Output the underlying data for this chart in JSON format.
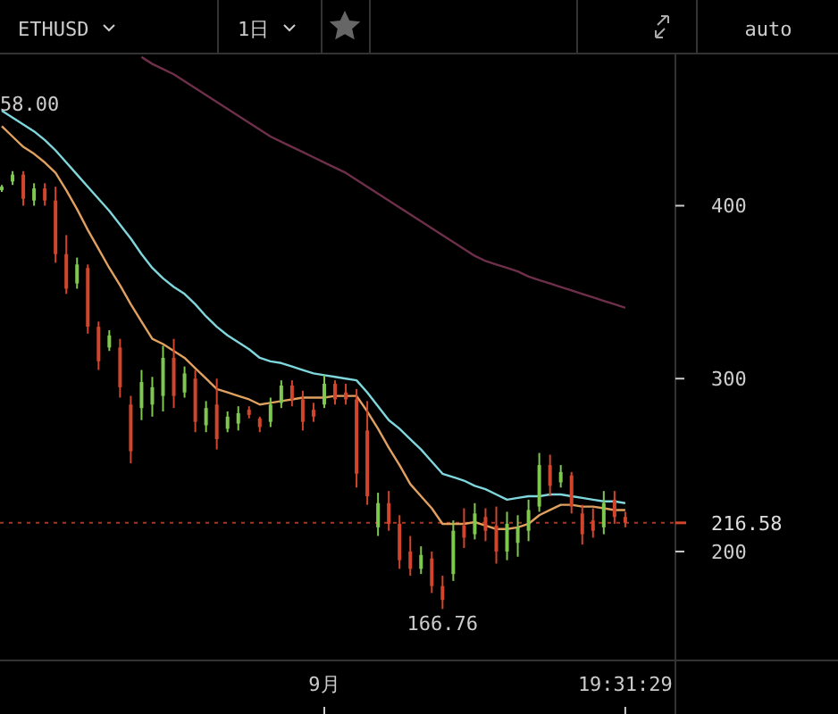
{
  "chart_data": {
    "type": "candlestick",
    "categories": [
      null,
      null,
      null,
      null,
      null,
      null,
      null,
      null,
      null,
      null,
      null,
      null,
      null,
      null,
      null,
      null,
      null,
      null,
      null,
      null,
      null,
      null,
      null,
      null,
      null,
      null,
      null,
      null,
      null,
      null,
      "9月",
      null,
      null,
      null,
      null,
      null,
      null,
      null,
      null,
      null,
      null,
      null,
      null,
      null,
      null,
      null,
      null,
      null,
      null,
      null,
      null,
      null,
      null,
      null,
      null,
      null,
      null,
      null,
      "19:31:29"
    ],
    "ohlc": [
      [
        409,
        412,
        408,
        411
      ],
      [
        414,
        420,
        412,
        418
      ],
      [
        418,
        420,
        400,
        404
      ],
      [
        403,
        413,
        400,
        410
      ],
      [
        410,
        413,
        400,
        403
      ],
      [
        403,
        411,
        367,
        372
      ],
      [
        372,
        383,
        349,
        352
      ],
      [
        355,
        370,
        352,
        366
      ],
      [
        364,
        366,
        326,
        330
      ],
      [
        330,
        333,
        305,
        310
      ],
      [
        318,
        328,
        316,
        325
      ],
      [
        318,
        323,
        289,
        295
      ],
      [
        285,
        290,
        251,
        258
      ],
      [
        283,
        305,
        276,
        298
      ],
      [
        285,
        301,
        278,
        295
      ],
      [
        290,
        319,
        281,
        312
      ],
      [
        312,
        323,
        283,
        290
      ],
      [
        292,
        307,
        289,
        303
      ],
      [
        300,
        305,
        269,
        275
      ],
      [
        273,
        287,
        269,
        283
      ],
      [
        285,
        300,
        259,
        265
      ],
      [
        271,
        281,
        269,
        278
      ],
      [
        274,
        284,
        270,
        280
      ],
      [
        282,
        284,
        277,
        279
      ],
      [
        277,
        278,
        269,
        272
      ],
      [
        275,
        289,
        272,
        285
      ],
      [
        286,
        299,
        283,
        296
      ],
      [
        296,
        299,
        284,
        288
      ],
      [
        288,
        293,
        270,
        275
      ],
      [
        282,
        286,
        275,
        278
      ],
      [
        285,
        302,
        283,
        297
      ],
      [
        297,
        299,
        285,
        288
      ],
      [
        292,
        297,
        285,
        288
      ],
      [
        288,
        294,
        237,
        245
      ],
      [
        270,
        287,
        227,
        232
      ],
      [
        214,
        234,
        209,
        228
      ],
      [
        228,
        235,
        212,
        216
      ],
      [
        216,
        221,
        190,
        195
      ],
      [
        200,
        209,
        186,
        190
      ],
      [
        190,
        203,
        187,
        198
      ],
      [
        196,
        200,
        176,
        180
      ],
      [
        180,
        186,
        166.76,
        172
      ],
      [
        187,
        218,
        183,
        212
      ],
      [
        215,
        225,
        202,
        208
      ],
      [
        210,
        228,
        207,
        222
      ],
      [
        220,
        225,
        206,
        212
      ],
      [
        215,
        226,
        193,
        200
      ],
      [
        200,
        223,
        195,
        216
      ],
      [
        205,
        221,
        197,
        214
      ],
      [
        212,
        230,
        206,
        224
      ],
      [
        226,
        257,
        223,
        250
      ],
      [
        250,
        256,
        232,
        238
      ],
      [
        240,
        250,
        237,
        246
      ],
      [
        244,
        246,
        222,
        226
      ],
      [
        222,
        227,
        204,
        210
      ],
      [
        218,
        225,
        208,
        212
      ],
      [
        214,
        235,
        210,
        228
      ],
      [
        230,
        235,
        216,
        220
      ],
      [
        220,
        223,
        214,
        216.58
      ]
    ],
    "colors": [
      "#7ec850",
      "#7ec850",
      "#d0452b",
      "#7ec850",
      "#d0452b",
      "#d0452b",
      "#d0452b",
      "#7ec850",
      "#d0452b",
      "#d0452b",
      "#7ec850",
      "#d0452b",
      "#d0452b",
      "#7ec850",
      "#7ec850",
      "#7ec850",
      "#d0452b",
      "#7ec850",
      "#d0452b",
      "#7ec850",
      "#d0452b",
      "#7ec850",
      "#7ec850",
      "#d0452b",
      "#d0452b",
      "#7ec850",
      "#7ec850",
      "#d0452b",
      "#d0452b",
      "#d0452b",
      "#7ec850",
      "#d0452b",
      "#d0452b",
      "#d0452b",
      "#d0452b",
      "#7ec850",
      "#d0452b",
      "#d0452b",
      "#d0452b",
      "#7ec850",
      "#d0452b",
      "#d0452b",
      "#7ec850",
      "#d0452b",
      "#7ec850",
      "#d0452b",
      "#d0452b",
      "#7ec850",
      "#7ec850",
      "#7ec850",
      "#7ec850",
      "#d0452b",
      "#7ec850",
      "#d0452b",
      "#d0452b",
      "#d0452b",
      "#7ec850",
      "#d0452b",
      "#d0452b"
    ],
    "series": [
      {
        "type": "line",
        "color": "#7fd6dc",
        "values": [
          455,
          451,
          447,
          443,
          438,
          432,
          425,
          418,
          411,
          404,
          397,
          389,
          381,
          372,
          364,
          358,
          353,
          349,
          343,
          336,
          330,
          325,
          321,
          317,
          312,
          310,
          309,
          307,
          305,
          303,
          302,
          301,
          300,
          299,
          292,
          284,
          276,
          271,
          265,
          259,
          252,
          245,
          243,
          241,
          238,
          236,
          233,
          230,
          231,
          232,
          232,
          233,
          233,
          232,
          231,
          230,
          229,
          229,
          228
        ]
      },
      {
        "type": "line",
        "color": "#e0a060",
        "values": [
          446,
          440,
          434,
          430,
          425,
          419,
          409,
          398,
          386,
          375,
          364,
          354,
          343,
          333,
          323,
          320,
          316,
          312,
          306,
          300,
          294,
          292,
          290,
          288,
          285,
          286,
          287,
          288,
          289,
          289,
          289,
          290,
          290,
          290,
          281,
          271,
          260,
          250,
          239,
          232,
          225,
          216,
          216,
          216,
          217,
          215,
          213,
          213,
          214,
          216,
          221,
          224,
          227,
          227,
          226,
          226,
          225,
          224,
          224
        ]
      },
      {
        "type": "line",
        "color": "#6e2f4a",
        "values": [
          null,
          null,
          null,
          null,
          null,
          null,
          null,
          null,
          null,
          null,
          null,
          null,
          null,
          486,
          482,
          479,
          476,
          472,
          468,
          464,
          460,
          456,
          452,
          448,
          444,
          440,
          437,
          434,
          431,
          428,
          425,
          422,
          419,
          415,
          411,
          407,
          403,
          399,
          395,
          391,
          387,
          383,
          379,
          375,
          371,
          368,
          366,
          364,
          362,
          359,
          357,
          355,
          353,
          351,
          349,
          347,
          345,
          343,
          341
        ]
      }
    ],
    "ylim": [
      137,
      488
    ],
    "yticks": [
      200,
      300,
      400
    ],
    "ref_lines": [
      {
        "axis": "y",
        "value": 216.58,
        "label": "216.58",
        "color": "#d0452b",
        "line_style": "dashed"
      }
    ],
    "annotations": [
      "ETHUSD",
      "1日",
      "auto",
      "58.00",
      "166.76"
    ],
    "grid": false
  }
}
